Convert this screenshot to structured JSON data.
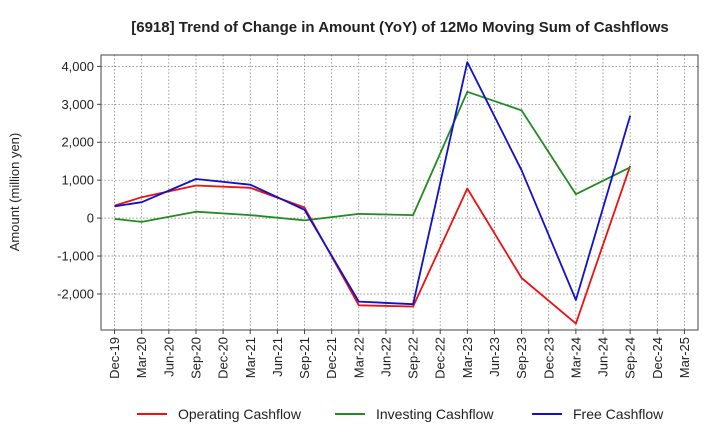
{
  "chart_data": {
    "type": "line",
    "title": "[6918]  Trend of Change in Amount (YoY) of 12Mo Moving Sum of Cashflows",
    "xlabel": "",
    "ylabel": "Amount (million yen)",
    "ylim": [
      -2950,
      4300
    ],
    "yticks": [
      -2000,
      -1000,
      0,
      1000,
      2000,
      3000,
      4000
    ],
    "ytick_labels": [
      "-2,000",
      "-1,000",
      "0",
      "1,000",
      "2,000",
      "3,000",
      "4,000"
    ],
    "categories": [
      "Dec-19",
      "Mar-20",
      "Jun-20",
      "Sep-20",
      "Dec-20",
      "Mar-21",
      "Jun-21",
      "Sep-21",
      "Dec-21",
      "Mar-22",
      "Jun-22",
      "Sep-22",
      "Dec-22",
      "Mar-23",
      "Jun-23",
      "Sep-23",
      "Dec-23",
      "Mar-24",
      "Jun-24",
      "Sep-24",
      "Dec-24",
      "Mar-25"
    ],
    "grid": true,
    "legend_position": "bottom",
    "series": [
      {
        "name": "Operating Cashflow",
        "color": "#ee1111",
        "values": [
          330,
          550,
          null,
          860,
          null,
          800,
          null,
          280,
          null,
          -2300,
          null,
          -2330,
          null,
          780,
          null,
          -1580,
          null,
          -2780,
          null,
          1380,
          null,
          null
        ]
      },
      {
        "name": "Investing Cashflow",
        "color": "#228b22",
        "values": [
          -20,
          -100,
          null,
          170,
          null,
          80,
          null,
          -60,
          null,
          110,
          null,
          80,
          null,
          3330,
          null,
          2840,
          null,
          630,
          null,
          1340,
          null,
          null
        ]
      },
      {
        "name": "Free Cashflow",
        "color": "#1010cc",
        "values": [
          310,
          420,
          null,
          1030,
          null,
          880,
          null,
          220,
          null,
          -2200,
          null,
          -2270,
          null,
          4110,
          null,
          1260,
          null,
          -2160,
          null,
          2700,
          null,
          null
        ]
      }
    ]
  }
}
